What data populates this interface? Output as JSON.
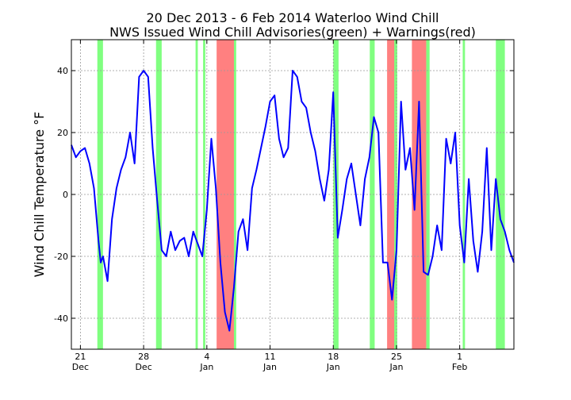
{
  "chart_data": {
    "type": "line",
    "title_line1": "20 Dec 2013 - 6 Feb 2014 Waterloo Wind Chill",
    "title_line2": "NWS Issued Wind Chill Advisories(green) + Warnings(red)",
    "xlabel": "",
    "ylabel": "Wind Chill Temperature °F",
    "xlim": [
      "2013-12-20T00:00",
      "2014-02-07T00:00"
    ],
    "ylim": [
      -50,
      50
    ],
    "yticks": [
      -40,
      -20,
      0,
      20,
      40
    ],
    "xticks": [
      {
        "date": "2013-12-21",
        "line1": "21",
        "line2": "Dec"
      },
      {
        "date": "2013-12-28",
        "line1": "28",
        "line2": "Dec"
      },
      {
        "date": "2014-01-04",
        "line1": "4",
        "line2": "Jan"
      },
      {
        "date": "2014-01-11",
        "line1": "11",
        "line2": "Jan"
      },
      {
        "date": "2014-01-18",
        "line1": "18",
        "line2": "Jan"
      },
      {
        "date": "2014-01-25",
        "line1": "25",
        "line2": "Jan"
      },
      {
        "date": "2014-02-01",
        "line1": "1",
        "line2": "Feb"
      }
    ],
    "grid": true,
    "colors": {
      "line": "#0000ff",
      "advisory": "#80ff80",
      "warning": "#ff8080",
      "grid": "#999999"
    },
    "advisories": [
      [
        "2013-12-22T21:00",
        "2013-12-23T12:00"
      ],
      [
        "2013-12-29T09:00",
        "2013-12-30T00:00"
      ],
      [
        "2014-01-02T18:00",
        "2014-01-03T00:00"
      ],
      [
        "2014-01-03T14:00",
        "2014-01-03T20:00"
      ],
      [
        "2014-01-07T00:00",
        "2014-01-07T06:00"
      ],
      [
        "2014-01-18T00:00",
        "2014-01-18T14:00"
      ],
      [
        "2014-01-22T01:00",
        "2014-01-22T14:00"
      ],
      [
        "2014-01-24T17:00",
        "2014-01-25T02:00"
      ],
      [
        "2014-01-28T07:00",
        "2014-01-28T16:00"
      ],
      [
        "2014-02-01T08:00",
        "2014-02-01T14:00"
      ],
      [
        "2014-02-05T00:00",
        "2014-02-06T00:00"
      ]
    ],
    "warnings": [
      [
        "2014-01-05T02:00",
        "2014-01-07T00:00"
      ],
      [
        "2014-01-23T23:00",
        "2014-01-24T18:00"
      ],
      [
        "2014-01-26T17:00",
        "2014-01-28T07:00"
      ]
    ],
    "series": [
      {
        "x": [
          "2013-12-20T00:00",
          "2013-12-20T12:00",
          "2013-12-21T00:00",
          "2013-12-21T12:00",
          "2013-12-22T00:00",
          "2013-12-22T12:00",
          "2013-12-23T00:00",
          "2013-12-23T06:00",
          "2013-12-23T12:00",
          "2013-12-24T00:00",
          "2013-12-24T12:00",
          "2013-12-25T00:00",
          "2013-12-25T12:00",
          "2013-12-26T00:00",
          "2013-12-26T12:00",
          "2013-12-27T00:00",
          "2013-12-27T12:00",
          "2013-12-28T00:00",
          "2013-12-28T12:00",
          "2013-12-29T00:00",
          "2013-12-29T12:00",
          "2013-12-30T00:00",
          "2013-12-30T12:00",
          "2013-12-31T00:00",
          "2013-12-31T12:00",
          "2014-01-01T00:00",
          "2014-01-01T12:00",
          "2014-01-02T00:00",
          "2014-01-02T12:00",
          "2014-01-03T00:00",
          "2014-01-03T12:00",
          "2014-01-04T00:00",
          "2014-01-04T12:00",
          "2014-01-05T00:00",
          "2014-01-05T12:00",
          "2014-01-06T00:00",
          "2014-01-06T12:00",
          "2014-01-07T00:00",
          "2014-01-07T12:00",
          "2014-01-08T00:00",
          "2014-01-08T12:00",
          "2014-01-09T00:00",
          "2014-01-09T12:00",
          "2014-01-10T00:00",
          "2014-01-10T12:00",
          "2014-01-11T00:00",
          "2014-01-11T12:00",
          "2014-01-12T00:00",
          "2014-01-12T12:00",
          "2014-01-13T00:00",
          "2014-01-13T12:00",
          "2014-01-14T00:00",
          "2014-01-14T12:00",
          "2014-01-15T00:00",
          "2014-01-15T12:00",
          "2014-01-16T00:00",
          "2014-01-16T12:00",
          "2014-01-17T00:00",
          "2014-01-17T12:00",
          "2014-01-18T00:00",
          "2014-01-18T12:00",
          "2014-01-19T00:00",
          "2014-01-19T12:00",
          "2014-01-20T00:00",
          "2014-01-20T12:00",
          "2014-01-21T00:00",
          "2014-01-21T12:00",
          "2014-01-22T00:00",
          "2014-01-22T12:00",
          "2014-01-23T00:00",
          "2014-01-23T12:00",
          "2014-01-24T00:00",
          "2014-01-24T12:00",
          "2014-01-25T00:00",
          "2014-01-25T12:00",
          "2014-01-26T00:00",
          "2014-01-26T12:00",
          "2014-01-27T00:00",
          "2014-01-27T12:00",
          "2014-01-28T00:00",
          "2014-01-28T12:00",
          "2014-01-29T00:00",
          "2014-01-29T12:00",
          "2014-01-30T00:00",
          "2014-01-30T12:00",
          "2014-01-31T00:00",
          "2014-01-31T12:00",
          "2014-02-01T00:00",
          "2014-02-01T12:00",
          "2014-02-02T00:00",
          "2014-02-02T12:00",
          "2014-02-03T00:00",
          "2014-02-03T12:00",
          "2014-02-04T00:00",
          "2014-02-04T12:00",
          "2014-02-05T00:00",
          "2014-02-05T12:00",
          "2014-02-06T00:00",
          "2014-02-06T12:00",
          "2014-02-07T00:00"
        ],
        "y": [
          16,
          12,
          14,
          15,
          10,
          2,
          -15,
          -22,
          -20,
          -28,
          -8,
          2,
          8,
          12,
          20,
          10,
          38,
          40,
          38,
          15,
          -2,
          -18,
          -20,
          -12,
          -18,
          -15,
          -14,
          -20,
          -12,
          -16,
          -20,
          -5,
          18,
          2,
          -22,
          -38,
          -44,
          -30,
          -12,
          -8,
          -18,
          2,
          8,
          15,
          22,
          30,
          32,
          18,
          12,
          15,
          40,
          38,
          30,
          28,
          20,
          14,
          5,
          -2,
          8,
          33,
          -14,
          -5,
          5,
          10,
          0,
          -10,
          5,
          12,
          25,
          20,
          -22,
          -22,
          -34,
          -18,
          30,
          8,
          15,
          -5,
          30,
          -25,
          -26,
          -20,
          -10,
          -18,
          18,
          10,
          20,
          -10,
          -22,
          5,
          -15,
          -25,
          -12,
          15,
          -18,
          5,
          -8,
          -12,
          -18,
          -22
        ]
      }
    ]
  }
}
